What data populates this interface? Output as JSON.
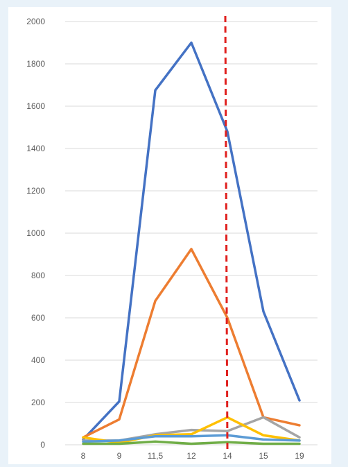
{
  "chart_data": {
    "type": "line",
    "title": "",
    "xlabel": "",
    "ylabel": "",
    "categories": [
      "8",
      "9",
      "11,5",
      "12",
      "14",
      "15",
      "19"
    ],
    "ylim": [
      0,
      2000
    ],
    "yticks": [
      0,
      200,
      400,
      600,
      800,
      1000,
      1200,
      1400,
      1600,
      1800,
      2000
    ],
    "grid": "horizontal",
    "legend": "none",
    "series": [
      {
        "color": "#4472c4",
        "values": [
          25,
          205,
          1675,
          1900,
          1480,
          630,
          210
        ]
      },
      {
        "color": "#ed7d31",
        "values": [
          35,
          120,
          680,
          925,
          600,
          130,
          92
        ]
      },
      {
        "color": "#a5a5a5",
        "values": [
          20,
          20,
          50,
          70,
          65,
          130,
          35
        ]
      },
      {
        "color": "#ffc000",
        "values": [
          35,
          10,
          45,
          50,
          130,
          45,
          20
        ]
      },
      {
        "color": "#5b9bd5",
        "values": [
          15,
          20,
          40,
          40,
          45,
          25,
          20
        ]
      },
      {
        "color": "#70ad47",
        "values": [
          5,
          5,
          15,
          5,
          12,
          5,
          5
        ]
      }
    ],
    "marker_line": {
      "x": "14",
      "color": "#e0201e",
      "style": "dashed"
    }
  }
}
